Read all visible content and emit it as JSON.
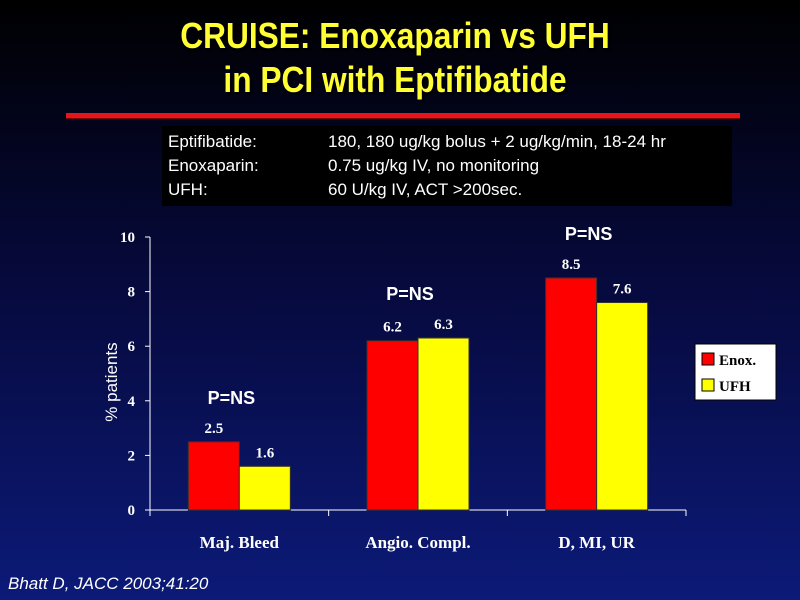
{
  "title": {
    "line1": "CRUISE:  Enoxaparin vs UFH",
    "line2": "in PCI with Eptifibatide"
  },
  "info": [
    {
      "label": "Eptifibatide:",
      "value": "180, 180 ug/kg bolus + 2 ug/kg/min, 18-24 hr"
    },
    {
      "label": "Enoxaparin:",
      "value": "0.75 ug/kg IV, no monitoring"
    },
    {
      "label": "UFH:",
      "value": "60 U/kg IV, ACT >200sec."
    }
  ],
  "citation": "Bhatt D, JACC 2003;41:20",
  "colors": {
    "enox": "#ff0000",
    "ufh": "#ffff00",
    "title": "#ffff33",
    "rule": "#e8141c"
  },
  "chart_data": {
    "type": "bar",
    "categories": [
      "Maj. Bleed",
      "Angio. Compl.",
      "D, MI, UR"
    ],
    "series": [
      {
        "name": "Enox.",
        "values": [
          2.5,
          6.2,
          8.5
        ],
        "labels": [
          "2.5",
          "6.2",
          "8.5"
        ]
      },
      {
        "name": "UFH",
        "values": [
          1.6,
          6.3,
          7.6
        ],
        "labels": [
          "1.6",
          "6.3",
          "7.6"
        ]
      }
    ],
    "annotations": [
      "P=NS",
      "P=NS",
      "P=NS"
    ],
    "ylabel": "% patients",
    "xlabel": "",
    "ylim": [
      0,
      10
    ],
    "yticks": [
      "0",
      "2",
      "4",
      "6",
      "8",
      "10"
    ],
    "legend": "right",
    "grid": false
  }
}
